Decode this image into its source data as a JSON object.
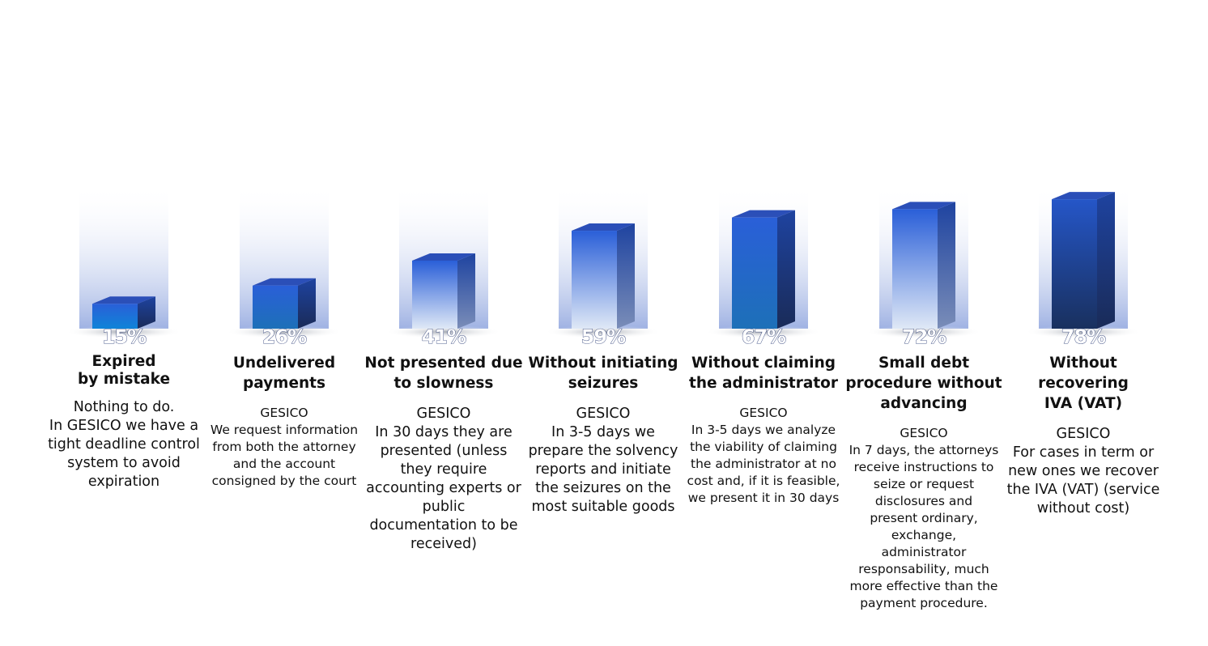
{
  "chart_data": {
    "type": "bar",
    "title": "",
    "xlabel": "",
    "ylabel": "",
    "ylim": [
      0,
      100
    ],
    "categories": [
      "Expired\nby mistake",
      "Undelivered\npayments",
      "Not presented due\nto slowness",
      "Without initiating\nseizures",
      "Without claiming\nthe administrator",
      "Small debt\nprocedure without\nadvancing",
      "Without recovering\nIVA (VAT)"
    ],
    "values": [
      15,
      26,
      41,
      59,
      67,
      72,
      78
    ],
    "value_labels": [
      "15%",
      "26%",
      "41%",
      "59%",
      "67%",
      "72%",
      "78%"
    ],
    "descriptions": [
      "Nothing to do.\nIn GESICO we have a\ntight deadline control\nsystem to avoid\nexpiration",
      "GESICO\nWe request information\nfrom both the attorney\nand the account\nconsigned by the court",
      "GESICO\nIn 30 days they are\npresented (unless\nthey require\naccounting experts or\npublic\ndocumentation to be\nreceived)",
      "GESICO\nIn 3-5 days we\nprepare the solvency\nreports and initiate\nthe seizures on the\nmost suitable goods",
      "GESICO\nIn 3-5 days we analyze\nthe viability of claiming\nthe administrator at no\ncost and, if it is feasible,\nwe present it in 30 days",
      "GESICO\nIn 7 days, the attorneys\nreceive instructions to\nseize or request\ndisclosures and\npresent ordinary,\nexchange,\nadministrator\nresponsability, much\nmore effective than the\npayment procedure.",
      "GESICO\nFor cases in term or\nnew ones we recover\nthe IVA (VAT) (service\nwithout cost)"
    ],
    "colors": {
      "bar_front_top": "#2a5fd8",
      "bar_side": "#1a3a8a",
      "bar_top": "#2b4fb8",
      "background_column": "#9fb2e3",
      "label_outline": "#1a2d6b"
    }
  }
}
